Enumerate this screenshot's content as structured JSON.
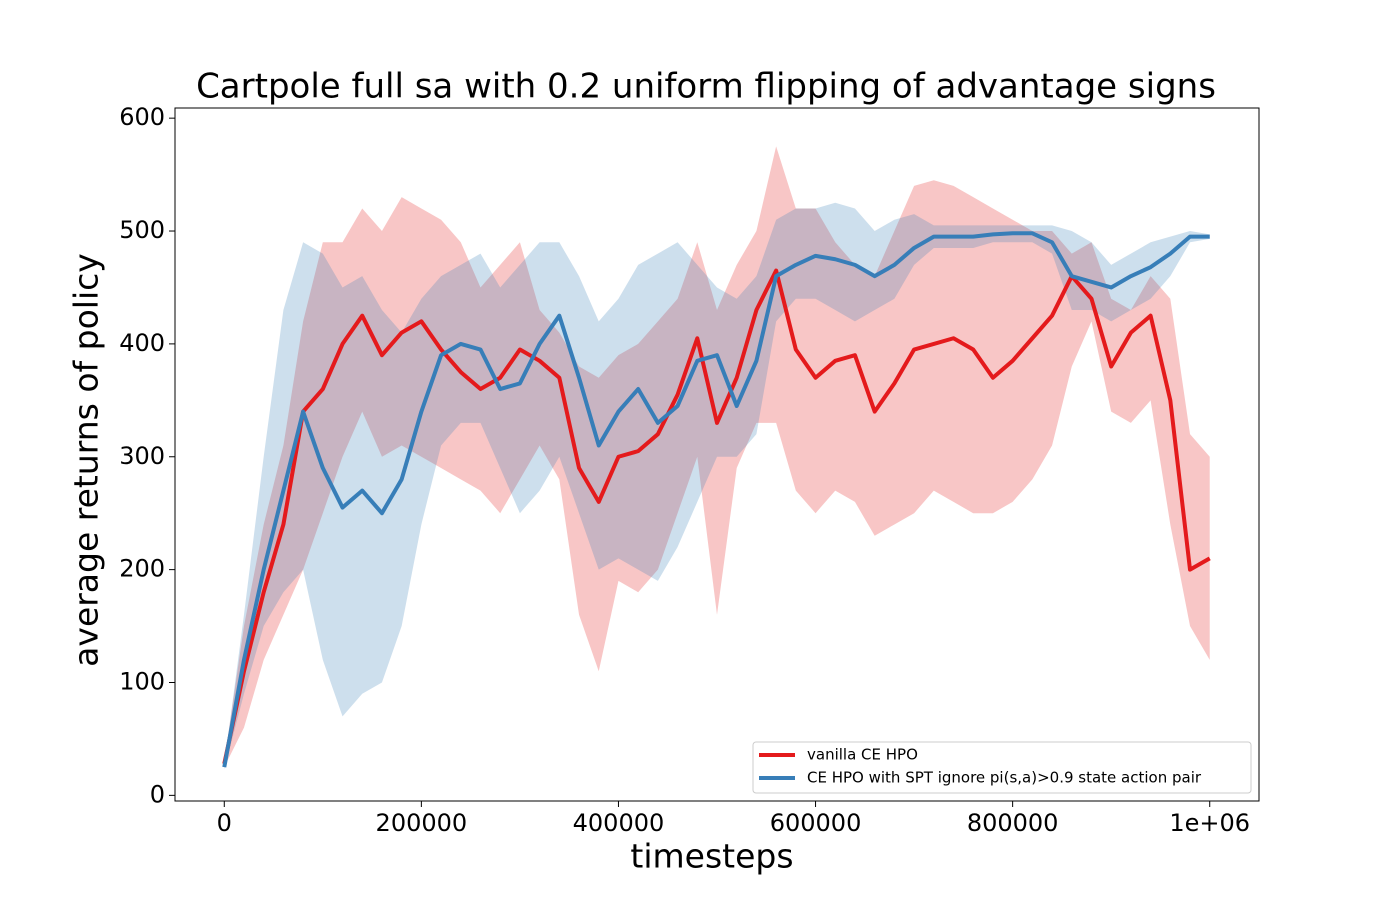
{
  "chart_data": {
    "type": "line",
    "title": "Cartpole full sa with 0.2 uniform flipping of advantage signs",
    "xlabel": "timesteps",
    "ylabel": "average returns of policy",
    "x": [
      0,
      20000,
      40000,
      60000,
      80000,
      100000,
      120000,
      140000,
      160000,
      180000,
      200000,
      220000,
      240000,
      260000,
      280000,
      300000,
      320000,
      340000,
      360000,
      380000,
      400000,
      420000,
      440000,
      460000,
      480000,
      500000,
      520000,
      540000,
      560000,
      580000,
      600000,
      620000,
      640000,
      660000,
      680000,
      700000,
      720000,
      740000,
      760000,
      780000,
      800000,
      820000,
      840000,
      860000,
      880000,
      900000,
      920000,
      940000,
      960000,
      980000,
      1000000
    ],
    "series": [
      {
        "name": "vanilla CE HPO",
        "color": "#e41a1c",
        "values": [
          28,
          110,
          180,
          240,
          340,
          360,
          400,
          425,
          390,
          410,
          420,
          395,
          375,
          360,
          370,
          395,
          385,
          370,
          290,
          260,
          300,
          305,
          320,
          355,
          405,
          330,
          370,
          430,
          465,
          395,
          370,
          385,
          390,
          340,
          365,
          395,
          400,
          405,
          395,
          370,
          385,
          405,
          425,
          460,
          440,
          380,
          410,
          425,
          350,
          200,
          210
        ],
        "upper": [
          30,
          150,
          240,
          310,
          420,
          490,
          490,
          520,
          500,
          530,
          520,
          510,
          490,
          450,
          470,
          490,
          430,
          410,
          380,
          370,
          390,
          400,
          420,
          440,
          490,
          430,
          470,
          500,
          575,
          520,
          520,
          490,
          470,
          460,
          500,
          540,
          545,
          540,
          530,
          520,
          510,
          500,
          500,
          480,
          490,
          440,
          430,
          460,
          440,
          320,
          300
        ],
        "lower": [
          25,
          60,
          120,
          160,
          200,
          250,
          300,
          340,
          300,
          310,
          300,
          290,
          280,
          270,
          250,
          280,
          310,
          280,
          160,
          110,
          190,
          180,
          200,
          250,
          300,
          160,
          290,
          330,
          330,
          270,
          250,
          270,
          260,
          230,
          240,
          250,
          270,
          260,
          250,
          250,
          260,
          280,
          310,
          380,
          420,
          340,
          330,
          350,
          240,
          150,
          120
        ]
      },
      {
        "name": "CE HPO with SPT ignore pi(s,a)>0.9 state action pair",
        "color": "#377eb8",
        "values": [
          25,
          120,
          200,
          270,
          340,
          290,
          255,
          270,
          250,
          280,
          340,
          390,
          400,
          395,
          360,
          365,
          400,
          425,
          370,
          310,
          340,
          360,
          330,
          345,
          385,
          390,
          345,
          385,
          460,
          470,
          478,
          475,
          470,
          460,
          470,
          485,
          495,
          495,
          495,
          497,
          498,
          498,
          490,
          460,
          455,
          450,
          460,
          468,
          480,
          495,
          495
        ],
        "upper": [
          27,
          160,
          300,
          430,
          490,
          480,
          450,
          460,
          430,
          410,
          440,
          460,
          470,
          480,
          450,
          470,
          490,
          490,
          460,
          420,
          440,
          470,
          480,
          490,
          470,
          450,
          440,
          460,
          510,
          520,
          520,
          525,
          520,
          500,
          510,
          515,
          505,
          505,
          505,
          505,
          505,
          505,
          505,
          500,
          490,
          470,
          480,
          490,
          495,
          500,
          497
        ],
        "lower": [
          23,
          90,
          150,
          180,
          200,
          120,
          70,
          90,
          100,
          150,
          240,
          310,
          330,
          330,
          290,
          250,
          270,
          300,
          250,
          200,
          210,
          200,
          190,
          220,
          260,
          300,
          300,
          320,
          420,
          440,
          440,
          430,
          420,
          430,
          440,
          470,
          485,
          485,
          485,
          490,
          490,
          490,
          480,
          430,
          430,
          420,
          430,
          440,
          460,
          490,
          493
        ]
      }
    ],
    "xlim": [
      -50000,
      1050000
    ],
    "ylim": [
      -5,
      609
    ],
    "xticks": [
      0,
      200000,
      400000,
      600000,
      800000,
      {
        "value": 1000000,
        "label": "1e+06"
      }
    ],
    "yticks": [
      0,
      100,
      200,
      300,
      400,
      500,
      600
    ],
    "grid": false,
    "legend": "lower right"
  }
}
